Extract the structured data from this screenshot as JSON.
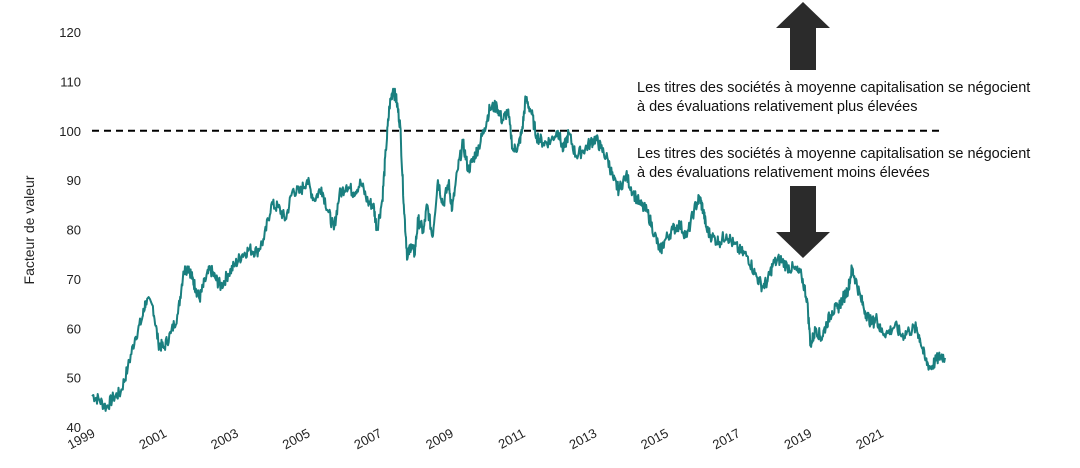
{
  "chart_data": {
    "type": "line",
    "title": "",
    "xlabel": "",
    "ylabel": "Facteur de valeur",
    "ylim": [
      40,
      120
    ],
    "yticks": [
      "40",
      "50",
      "60",
      "70",
      "80",
      "90",
      "100",
      "110",
      "120"
    ],
    "xlim": [
      1999,
      2022.8
    ],
    "xticks": [
      "1999",
      "2001",
      "2003",
      "2005",
      "2007",
      "2009",
      "2011",
      "2013",
      "2015",
      "2017",
      "2019",
      "2021"
    ],
    "reference_line": {
      "y": 100,
      "style": "dashed"
    },
    "series": [
      {
        "color": "#1a7f7f",
        "points": [
          [
            1999.0,
            46.5
          ],
          [
            1999.2,
            45.5
          ],
          [
            1999.4,
            44.0
          ],
          [
            1999.6,
            46.0
          ],
          [
            1999.8,
            47.0
          ],
          [
            2000.0,
            52.0
          ],
          [
            2000.2,
            58.0
          ],
          [
            2000.4,
            62.0
          ],
          [
            2000.5,
            65.5
          ],
          [
            2000.7,
            64.5
          ],
          [
            2000.85,
            57.0
          ],
          [
            2001.0,
            56.0
          ],
          [
            2001.2,
            59.0
          ],
          [
            2001.4,
            63.0
          ],
          [
            2001.55,
            71.5
          ],
          [
            2001.7,
            72.5
          ],
          [
            2001.8,
            70.0
          ],
          [
            2001.9,
            68.0
          ],
          [
            2002.0,
            66.0
          ],
          [
            2002.15,
            69.5
          ],
          [
            2002.3,
            72.0
          ],
          [
            2002.45,
            70.0
          ],
          [
            2002.6,
            68.5
          ],
          [
            2002.8,
            71.0
          ],
          [
            2003.0,
            73.0
          ],
          [
            2003.2,
            75.0
          ],
          [
            2003.4,
            76.0
          ],
          [
            2003.6,
            75.5
          ],
          [
            2003.8,
            78.0
          ],
          [
            2004.0,
            85.0
          ],
          [
            2004.2,
            84.5
          ],
          [
            2004.4,
            82.0
          ],
          [
            2004.6,
            88.0
          ],
          [
            2004.8,
            87.5
          ],
          [
            2005.0,
            90.0
          ],
          [
            2005.2,
            86.0
          ],
          [
            2005.4,
            88.5
          ],
          [
            2005.6,
            83.5
          ],
          [
            2005.75,
            80.0
          ],
          [
            2005.9,
            87.0
          ],
          [
            2006.1,
            89.0
          ],
          [
            2006.3,
            87.5
          ],
          [
            2006.5,
            89.5
          ],
          [
            2006.7,
            85.5
          ],
          [
            2006.85,
            85.0
          ],
          [
            2006.95,
            80.0
          ],
          [
            2007.1,
            86.0
          ],
          [
            2007.2,
            96.0
          ],
          [
            2007.3,
            105.0
          ],
          [
            2007.4,
            108.5
          ],
          [
            2007.5,
            106.0
          ],
          [
            2007.6,
            101.0
          ],
          [
            2007.7,
            85.0
          ],
          [
            2007.8,
            74.0
          ],
          [
            2007.9,
            77.0
          ],
          [
            2008.0,
            75.0
          ],
          [
            2008.1,
            82.0
          ],
          [
            2008.25,
            79.5
          ],
          [
            2008.35,
            85.0
          ],
          [
            2008.5,
            78.5
          ],
          [
            2008.65,
            90.0
          ],
          [
            2008.8,
            85.0
          ],
          [
            2008.95,
            89.5
          ],
          [
            2009.05,
            84.0
          ],
          [
            2009.2,
            92.0
          ],
          [
            2009.35,
            97.5
          ],
          [
            2009.5,
            92.0
          ],
          [
            2009.65,
            94.5
          ],
          [
            2009.8,
            97.0
          ],
          [
            2009.95,
            100.5
          ],
          [
            2010.1,
            104.5
          ],
          [
            2010.3,
            105.0
          ],
          [
            2010.45,
            102.0
          ],
          [
            2010.6,
            104.0
          ],
          [
            2010.75,
            96.0
          ],
          [
            2010.9,
            97.0
          ],
          [
            2011.0,
            100.0
          ],
          [
            2011.1,
            106.5
          ],
          [
            2011.25,
            104.0
          ],
          [
            2011.4,
            99.0
          ],
          [
            2011.6,
            97.5
          ],
          [
            2011.8,
            98.0
          ],
          [
            2012.0,
            100.0
          ],
          [
            2012.15,
            96.0
          ],
          [
            2012.3,
            99.5
          ],
          [
            2012.5,
            95.0
          ],
          [
            2012.7,
            96.0
          ],
          [
            2012.9,
            97.5
          ],
          [
            2013.05,
            98.5
          ],
          [
            2013.2,
            96.5
          ],
          [
            2013.4,
            94.0
          ],
          [
            2013.55,
            90.0
          ],
          [
            2013.7,
            88.0
          ],
          [
            2013.9,
            91.0
          ],
          [
            2014.1,
            87.5
          ],
          [
            2014.3,
            85.0
          ],
          [
            2014.5,
            83.5
          ],
          [
            2014.7,
            79.0
          ],
          [
            2014.85,
            75.5
          ],
          [
            2015.0,
            78.0
          ],
          [
            2015.2,
            80.0
          ],
          [
            2015.4,
            81.0
          ],
          [
            2015.6,
            78.5
          ],
          [
            2015.8,
            84.0
          ],
          [
            2015.95,
            86.5
          ],
          [
            2016.05,
            84.0
          ],
          [
            2016.15,
            80.0
          ],
          [
            2016.3,
            78.5
          ],
          [
            2016.5,
            77.5
          ],
          [
            2016.7,
            79.0
          ],
          [
            2016.9,
            77.0
          ],
          [
            2017.1,
            75.5
          ],
          [
            2017.3,
            74.5
          ],
          [
            2017.5,
            71.0
          ],
          [
            2017.7,
            68.5
          ],
          [
            2017.85,
            69.5
          ],
          [
            2018.0,
            73.0
          ],
          [
            2018.2,
            74.0
          ],
          [
            2018.4,
            72.5
          ],
          [
            2018.6,
            72.0
          ],
          [
            2018.8,
            70.5
          ],
          [
            2018.95,
            66.0
          ],
          [
            2019.05,
            56.5
          ],
          [
            2019.2,
            60.0
          ],
          [
            2019.35,
            58.0
          ],
          [
            2019.5,
            61.0
          ],
          [
            2019.65,
            63.5
          ],
          [
            2019.8,
            64.0
          ],
          [
            2019.95,
            66.0
          ],
          [
            2020.1,
            68.0
          ],
          [
            2020.2,
            72.0
          ],
          [
            2020.3,
            70.0
          ],
          [
            2020.45,
            66.0
          ],
          [
            2020.6,
            63.0
          ],
          [
            2020.75,
            61.0
          ],
          [
            2020.9,
            62.0
          ],
          [
            2021.0,
            59.5
          ],
          [
            2021.2,
            59.0
          ],
          [
            2021.4,
            60.5
          ],
          [
            2021.6,
            58.5
          ],
          [
            2021.8,
            59.5
          ],
          [
            2022.0,
            60.0
          ],
          [
            2022.1,
            58.0
          ],
          [
            2022.25,
            53.5
          ],
          [
            2022.4,
            52.0
          ],
          [
            2022.55,
            53.5
          ],
          [
            2022.7,
            54.5
          ],
          [
            2022.8,
            54.0
          ]
        ]
      }
    ],
    "annotations": [
      {
        "lines": [
          "Les titres des sociétés à moyenne capitalisation se négocient",
          "à des évaluations relativement plus élevées"
        ],
        "arrow": "up"
      },
      {
        "lines": [
          "Les titres des sociétés à moyenne capitalisation se négocient",
          "à des évaluations relativement moins élevées"
        ],
        "arrow": "down"
      }
    ]
  }
}
